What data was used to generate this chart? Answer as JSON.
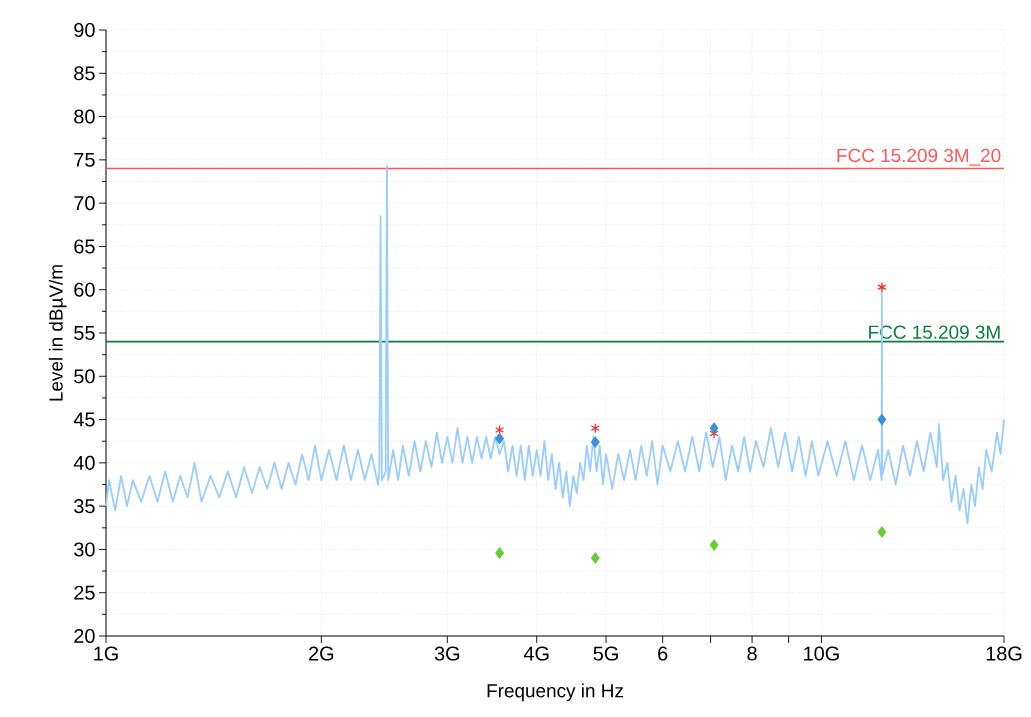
{
  "chart_data": {
    "type": "line",
    "xlabel": "Frequency in Hz",
    "ylabel": "Level in dBµV/m",
    "log": "x",
    "grid": true,
    "xlim": [
      1,
      18
    ],
    "ylim": [
      20,
      90
    ],
    "xticks": [
      {
        "value": 1,
        "label": "1G"
      },
      {
        "value": 2,
        "label": "2G"
      },
      {
        "value": 3,
        "label": "3G"
      },
      {
        "value": 4,
        "label": "4G"
      },
      {
        "value": 5,
        "label": "5G"
      },
      6,
      {
        "value": 7,
        "label": null
      },
      8,
      {
        "value": 9,
        "label": null
      },
      {
        "value": 10,
        "label": "10G"
      },
      {
        "value": 18,
        "label": "18G"
      }
    ],
    "yticks": [
      20,
      25,
      30,
      35,
      40,
      45,
      50,
      55,
      60,
      65,
      70,
      75,
      80,
      85,
      90
    ],
    "ref_lines": [
      {
        "axis": "y",
        "value": 74,
        "label": "FCC 15.209 3M_20",
        "color": "#ff5555"
      },
      {
        "axis": "y",
        "value": 54,
        "label": "FCC 15.209 3M",
        "color": "#0a7d3c"
      }
    ],
    "series": [
      {
        "color": "#99ccff",
        "marker": "none",
        "x": [
          1.0,
          1.01,
          1.03,
          1.05,
          1.07,
          1.09,
          1.12,
          1.15,
          1.18,
          1.21,
          1.24,
          1.27,
          1.3,
          1.33,
          1.36,
          1.4,
          1.44,
          1.48,
          1.52,
          1.56,
          1.6,
          1.64,
          1.68,
          1.72,
          1.76,
          1.8,
          1.84,
          1.88,
          1.92,
          1.96,
          2.0,
          2.05,
          2.1,
          2.15,
          2.2,
          2.25,
          2.3,
          2.35,
          2.4,
          2.41,
          2.42,
          2.43,
          2.46,
          2.47,
          2.48,
          2.52,
          2.56,
          2.6,
          2.65,
          2.7,
          2.75,
          2.8,
          2.85,
          2.9,
          2.95,
          3.0,
          3.05,
          3.1,
          3.15,
          3.2,
          3.25,
          3.3,
          3.35,
          3.4,
          3.45,
          3.5,
          3.55,
          3.6,
          3.65,
          3.7,
          3.75,
          3.8,
          3.85,
          3.9,
          3.95,
          4.0,
          4.05,
          4.1,
          4.15,
          4.2,
          4.25,
          4.3,
          4.35,
          4.4,
          4.45,
          4.5,
          4.55,
          4.6,
          4.65,
          4.7,
          4.75,
          4.8,
          4.85,
          4.9,
          4.95,
          5.0,
          5.1,
          5.2,
          5.3,
          5.4,
          5.5,
          5.6,
          5.7,
          5.8,
          5.9,
          6.0,
          6.15,
          6.3,
          6.45,
          6.6,
          6.75,
          6.9,
          7.05,
          7.2,
          7.35,
          7.5,
          7.65,
          7.8,
          7.95,
          8.1,
          8.3,
          8.5,
          8.7,
          8.9,
          9.1,
          9.3,
          9.5,
          9.7,
          9.9,
          10.2,
          10.5,
          10.8,
          11.1,
          11.4,
          11.7,
          12.0,
          12.14,
          12.15,
          12.16,
          12.4,
          12.7,
          13.0,
          13.3,
          13.6,
          13.9,
          14.2,
          14.5,
          14.6,
          14.8,
          15.0,
          15.2,
          15.4,
          15.6,
          15.8,
          16.0,
          16.2,
          16.4,
          16.6,
          16.8,
          17.0,
          17.3,
          17.6,
          17.8,
          18.0
        ],
        "values": [
          35,
          38,
          34.5,
          38.5,
          35,
          38,
          35.5,
          38.5,
          35.5,
          39,
          35.5,
          38.5,
          36,
          40,
          35.5,
          38.5,
          36,
          39,
          36,
          39.5,
          36.5,
          39.5,
          37,
          40,
          37,
          40,
          37.5,
          41,
          38,
          42,
          38,
          41.5,
          38,
          42,
          38,
          41.5,
          38,
          41,
          37.5,
          39,
          68.5,
          38,
          39,
          74.3,
          38,
          41.5,
          38,
          42,
          38.5,
          42.5,
          39,
          42.5,
          39.5,
          43.5,
          40,
          43,
          40,
          44,
          40,
          43,
          40,
          43,
          40.5,
          43,
          40.5,
          43,
          41,
          42.5,
          39,
          42,
          38.5,
          42,
          38,
          42,
          38.5,
          41.5,
          38.5,
          42.5,
          38,
          41,
          37,
          40,
          36,
          39,
          35,
          38.5,
          36.5,
          40,
          38,
          42,
          39,
          43,
          39,
          42,
          37.5,
          41,
          37,
          41,
          38,
          41.5,
          38,
          42,
          38.5,
          42.5,
          37.5,
          42,
          39,
          42.5,
          39,
          43,
          39,
          43.5,
          39.5,
          43,
          38,
          42,
          39,
          43,
          39,
          42.5,
          39.5,
          44,
          39.5,
          43.5,
          39,
          43,
          38.5,
          42.5,
          38.5,
          42.5,
          38.5,
          42.5,
          38,
          42,
          38,
          41.5,
          38,
          60.3,
          38.5,
          41.5,
          37.5,
          42,
          38.5,
          42.5,
          39,
          43.5,
          39.5,
          44.5,
          38,
          40,
          35.5,
          38.5,
          34.5,
          37,
          33,
          37.5,
          35,
          39.5,
          37,
          41.5,
          39,
          43.5,
          41,
          45
        ]
      },
      {
        "type": "scatter",
        "color": "#ff2222",
        "marker": "cross",
        "x": [
          3.55,
          4.83,
          7.08,
          12.15
        ],
        "values": [
          43.8,
          44.0,
          43.4,
          60.3
        ]
      },
      {
        "type": "scatter",
        "color": "#3a8fd9",
        "marker": "diamond",
        "x": [
          3.55,
          4.83,
          7.08,
          12.15
        ],
        "values": [
          42.8,
          42.4,
          44.0,
          45.0
        ]
      },
      {
        "type": "scatter",
        "color": "#66cc33",
        "marker": "diamond",
        "x": [
          3.55,
          4.83,
          7.08,
          12.15
        ],
        "values": [
          29.6,
          29.0,
          30.5,
          32.0
        ]
      }
    ]
  }
}
